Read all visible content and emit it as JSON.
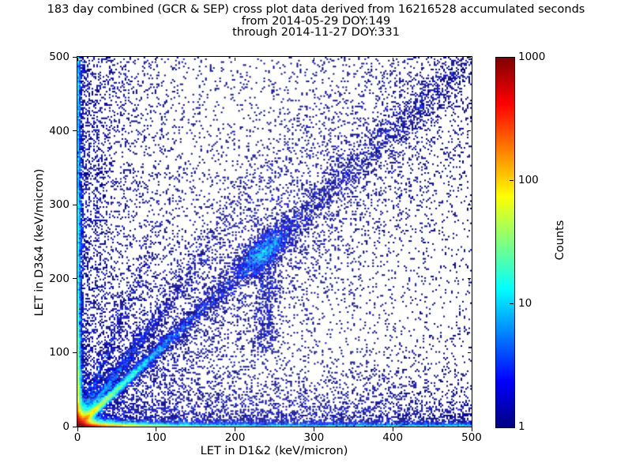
{
  "title": {
    "line1": "183 day combined (GCR & SEP) cross plot data derived from 16216528 accumulated seconds",
    "line2": "from 2014-05-29 DOY:149",
    "line3": "through 2014-11-27 DOY:331"
  },
  "chart_data": {
    "type": "heatmap",
    "subtype": "2d-histogram-cross-plot",
    "title": "183 day combined (GCR & SEP) cross plot data derived from 16216528 accumulated seconds",
    "subtitle_from": "from 2014-05-29 DOY:149",
    "subtitle_through": "through 2014-11-27 DOY:331",
    "duration_days": 183,
    "accumulated_seconds": 16216528,
    "start": {
      "date": "2014-05-29",
      "doy": 149
    },
    "end": {
      "date": "2014-11-27",
      "doy": 331
    },
    "xlabel": "LET in D1&2 (keV/micron)",
    "ylabel": "LET in D3&4 (keV/micron)",
    "xlim": [
      0,
      500
    ],
    "ylim": [
      0,
      500
    ],
    "xticks": [
      0,
      100,
      200,
      300,
      400,
      500
    ],
    "yticks": [
      0,
      100,
      200,
      300,
      400,
      500
    ],
    "grid": false,
    "background": "#ffffff",
    "point_color_single_count": "#000080",
    "colorbar": {
      "label": "Counts",
      "scale": "log",
      "min": 1,
      "max": 1000,
      "ticks": [
        1,
        10,
        100,
        1000
      ],
      "colormap": "jet",
      "stops": [
        [
          0,
          "#000080"
        ],
        [
          0.125,
          "#0000ff"
        ],
        [
          0.375,
          "#00ffff"
        ],
        [
          0.625,
          "#ffff00"
        ],
        [
          0.875,
          "#ff0000"
        ],
        [
          1,
          "#800000"
        ]
      ]
    },
    "features": [
      "hot core (~1000 counts, dark red) at origin within ~10 keV/micron",
      "bright band along y~0: red to x~40, yellow-green to ~80, cyan to ~110, dense navy to 500",
      "dense column along x~0 up to y=500, red near origin, cyan/blue specks above",
      "bright y=x coincidence track, cyan/green to ~70 with orange knots near (12,12) and (22,22)",
      "broadening blue diagonal band with dense cluster near (235,235)",
      "faint secondary track slope ~1.45 and weaker steep track slope ~2.6 from origin",
      "sparse single-count (navy) background scatter, denser near axes and diagonal"
    ],
    "generator": {
      "seed": 1337,
      "domain": 500,
      "bins": 250,
      "log_color_max_exponent": 3,
      "components": [
        {
          "kind": "exp_exp",
          "n": 25000,
          "sx": 6,
          "sy": 6
        },
        {
          "kind": "exp_exp",
          "n": 8000,
          "sx": 18,
          "sy": 1.5
        },
        {
          "kind": "exp_exp",
          "n": 9000,
          "sx": 45,
          "sy": 2.2
        },
        {
          "kind": "uni_exp",
          "n": 3600,
          "sy": 2.2
        },
        {
          "kind": "exp_exp",
          "n": 5400,
          "sx": 1.8,
          "sy": 60
        },
        {
          "kind": "exp_uni",
          "n": 3600,
          "sx": 1.8
        },
        {
          "kind": "exp_uni",
          "n": 2500,
          "sx": 45
        },
        {
          "kind": "diag",
          "n": 7700,
          "dist": "exp",
          "scale": 40,
          "slope": 1,
          "sigma0": 2,
          "sigmak": 0.01
        },
        {
          "kind": "diag",
          "n": 2800,
          "dist": "uni",
          "scale": 500,
          "slope": 1,
          "sigma0": 4,
          "sigmak": 0.02
        },
        {
          "kind": "diag",
          "n": 4500,
          "dist": "uni",
          "scale": 500,
          "slope": 1,
          "sigma0": 30,
          "sigmak": 0.1
        },
        {
          "kind": "diag",
          "n": 2200,
          "dist": "exp",
          "scale": 55,
          "slope": 1.45,
          "sigma0": 2.5,
          "sigmak": 0.03
        },
        {
          "kind": "diag",
          "n": 800,
          "dist": "exp",
          "scale": 35,
          "slope": 2.6,
          "sigma0": 2.5,
          "sigmak": 0.04
        },
        {
          "kind": "blob",
          "n": 1800,
          "cx": 237,
          "cy": 237,
          "su": 22,
          "sv": 9,
          "angle": 45
        },
        {
          "kind": "blob",
          "n": 550,
          "cx": 12,
          "cy": 12,
          "su": 3,
          "sv": 1.6,
          "angle": 45
        },
        {
          "kind": "blob",
          "n": 420,
          "cx": 22,
          "cy": 22,
          "su": 3,
          "sv": 1.6,
          "angle": 45
        },
        {
          "kind": "blob",
          "n": 400,
          "cx": 1.5,
          "cy": 268,
          "su": 2.5,
          "sv": 40,
          "angle": 0
        },
        {
          "kind": "uni_exp",
          "n": 3200,
          "sy": 30
        },
        {
          "kind": "uni_uni",
          "n": 4000
        },
        {
          "kind": "col",
          "n": 500,
          "cx": 240,
          "sx": 8,
          "y0": 100,
          "y1": 235
        }
      ]
    }
  }
}
